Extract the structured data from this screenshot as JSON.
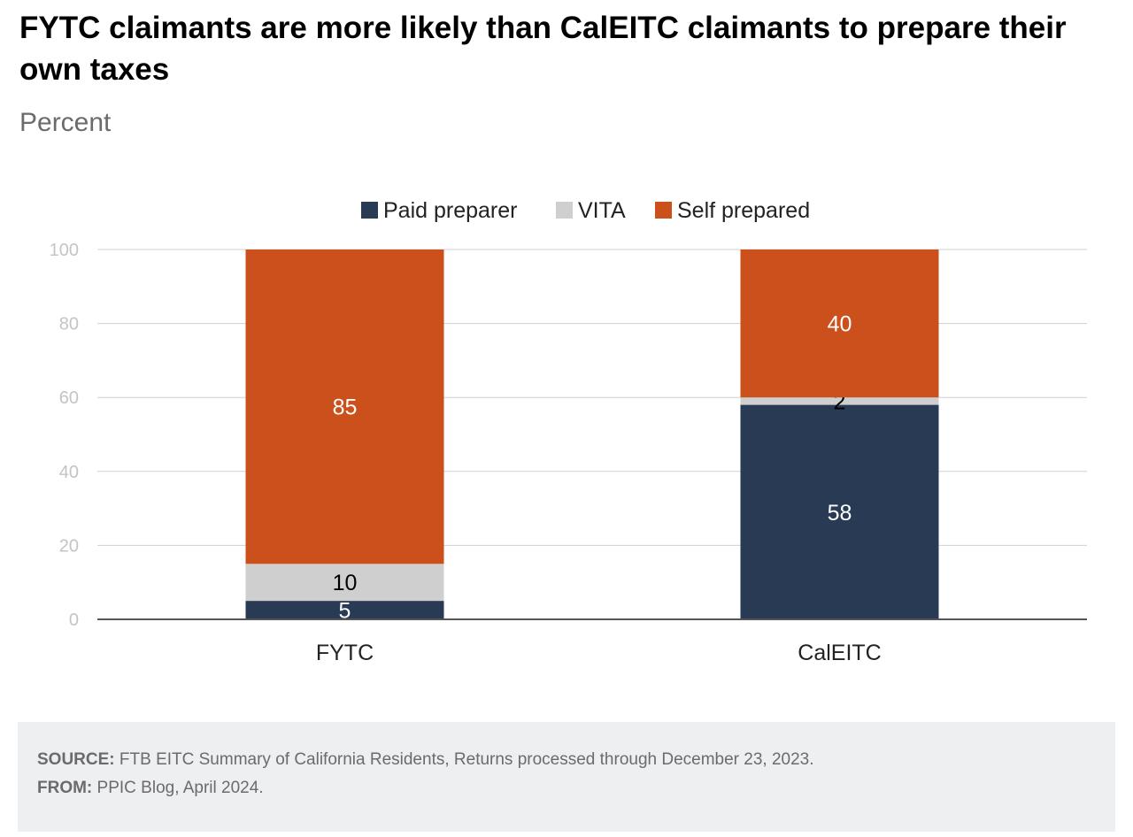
{
  "header": {
    "title": "FYTC claimants are more likely than CalEITC claimants to prepare their own taxes",
    "subtitle": "Percent"
  },
  "footer": {
    "source_label": "SOURCE:",
    "source_text": "FTB EITC Summary of California Residents, Returns processed through December 23, 2023.",
    "from_label": "FROM:",
    "from_text": "PPIC Blog, April 2024."
  },
  "chart_data": {
    "type": "bar",
    "stacked": true,
    "title": "FYTC claimants are more likely than CalEITC claimants to prepare their own taxes",
    "subtitle": "Percent",
    "categories": [
      "FYTC",
      "CalEITC"
    ],
    "series": [
      {
        "name": "Paid preparer",
        "values": [
          5,
          58
        ],
        "color": "#293a55",
        "label_color": "#ffffff"
      },
      {
        "name": "VITA",
        "values": [
          10,
          2
        ],
        "color": "#cfcfcf",
        "label_color": "#000000"
      },
      {
        "name": "Self prepared",
        "values": [
          85,
          40
        ],
        "color": "#cb501b",
        "label_color": "#ffffff"
      }
    ],
    "ylim": [
      0,
      100
    ],
    "yticks": [
      0,
      20,
      40,
      60,
      80,
      100
    ],
    "grid": true,
    "legend": "top-center",
    "xlabel": "",
    "ylabel": ""
  }
}
